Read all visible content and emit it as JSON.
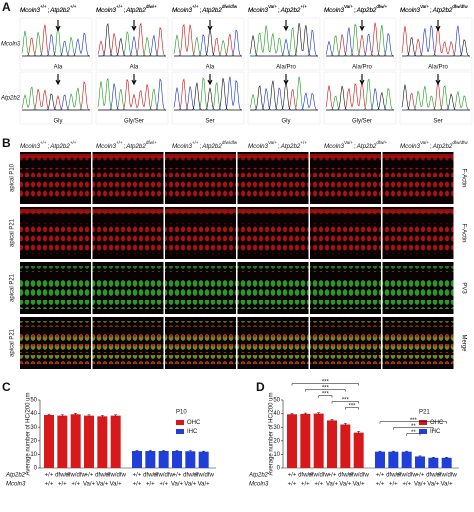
{
  "separator": ";",
  "genotypes": [
    {
      "gene1": "Mcoln3",
      "allele1": "+/+",
      "gene2": "Atp2b2",
      "allele2": "+/+"
    },
    {
      "gene1": "Mcoln3",
      "allele1": "+/+",
      "gene2": "Atp2b2",
      "allele2": "dfw/+"
    },
    {
      "gene1": "Mcoln3",
      "allele1": "+/+",
      "gene2": "Atp2b2",
      "allele2": "dfw/dfw"
    },
    {
      "gene1": "Mcoln3",
      "allele1": "Va/+",
      "gene2": "Atp2b2",
      "allele2": "+/+"
    },
    {
      "gene1": "Mcoln3",
      "allele1": "Va/+",
      "gene2": "Atp2b2",
      "allele2": "dfw/+"
    },
    {
      "gene1": "Mcoln3",
      "allele1": "Va/+",
      "gene2": "Atp2b2",
      "allele2": "dfw/dfw"
    }
  ],
  "panel_a": {
    "label": "A",
    "rows": [
      {
        "name": "Mcoln3",
        "residues": [
          "Ala",
          "Ala",
          "Ala",
          "Ala/Pro",
          "Ala/Pro",
          "Ala/Pro"
        ]
      },
      {
        "name": "Atp2b2",
        "residues": [
          "Gly",
          "Gly/Ser",
          "Ser",
          "Gly",
          "Gly/Ser",
          "Ser"
        ]
      }
    ]
  },
  "panel_b": {
    "label": "B",
    "rows": [
      {
        "stage": "apical P10",
        "stain": "F-Actin"
      },
      {
        "stage": "apical P21",
        "stain": "F-Actin"
      },
      {
        "stage": "apical P21",
        "stain": "PV3"
      },
      {
        "stage": "apical P21",
        "stain": "Merge"
      }
    ]
  },
  "chart_data": [
    {
      "panel": "C",
      "type": "bar",
      "title": "P10",
      "ylabel": "Average number of HC/200 um",
      "ylim": [
        0,
        50
      ],
      "yticks": [
        0,
        10,
        20,
        30,
        40,
        50
      ],
      "row_labels": [
        {
          "name": "Atp2b2",
          "labels": [
            "+/+",
            "dfw/+",
            "dfw/dfw",
            "+/+",
            "dfw/+",
            "dfw/dfw"
          ]
        },
        {
          "name": "Mcoln3",
          "labels": [
            "+/+",
            "+/+",
            "+/+",
            "Va/+",
            "Va/+",
            "Va/+"
          ]
        }
      ],
      "series": [
        {
          "name": "OHC",
          "color": "#d7191c",
          "values": [
            39,
            38.5,
            39.5,
            38.5,
            38,
            38.5
          ],
          "errors": [
            0.6,
            0.6,
            0.6,
            0.6,
            0.6,
            0.6
          ]
        },
        {
          "name": "IHC",
          "color": "#1f3fd8",
          "values": [
            12.5,
            12.5,
            12.5,
            12.5,
            12.3,
            12
          ],
          "errors": [
            0.4,
            0.4,
            0.4,
            0.4,
            0.4,
            0.4
          ]
        }
      ]
    },
    {
      "panel": "D",
      "type": "bar",
      "title": "P21",
      "ylabel": "Average number of HC/200 um",
      "ylim": [
        0,
        50
      ],
      "yticks": [
        0,
        10,
        20,
        30,
        40,
        50
      ],
      "row_labels": [
        {
          "name": "Atp2b2",
          "labels": [
            "+/+",
            "dfw/+",
            "dfw/dfw",
            "+/+",
            "dfw/+",
            "dfw/dfw"
          ]
        },
        {
          "name": "Mcoln3",
          "labels": [
            "+/+",
            "+/+",
            "+/+",
            "Va/+",
            "Va/+",
            "Va/+"
          ]
        }
      ],
      "series": [
        {
          "name": "OHC",
          "color": "#d7191c",
          "values": [
            39.5,
            39.8,
            40,
            35,
            32,
            26
          ],
          "errors": [
            0.6,
            0.6,
            0.6,
            0.8,
            0.8,
            0.9
          ]
        },
        {
          "name": "IHC",
          "color": "#1f3fd8",
          "values": [
            12,
            12,
            12,
            8.5,
            7.5,
            7.5
          ],
          "errors": [
            0.4,
            0.4,
            0.4,
            0.4,
            0.4,
            0.4
          ]
        }
      ],
      "annotations": [
        {
          "series": 0,
          "from": 0,
          "to": 5,
          "text": "***"
        },
        {
          "series": 0,
          "from": 1,
          "to": 4,
          "text": "***"
        },
        {
          "series": 0,
          "from": 2,
          "to": 3,
          "text": "***"
        },
        {
          "series": 0,
          "from": 3,
          "to": 5,
          "text": "***"
        },
        {
          "series": 0,
          "from": 4,
          "to": 5,
          "text": "***"
        },
        {
          "series": 1,
          "from": 0,
          "to": 5,
          "text": "***"
        },
        {
          "series": 1,
          "from": 1,
          "to": 4,
          "text": "**"
        },
        {
          "series": 1,
          "from": 2,
          "to": 3,
          "text": "**"
        }
      ]
    }
  ]
}
